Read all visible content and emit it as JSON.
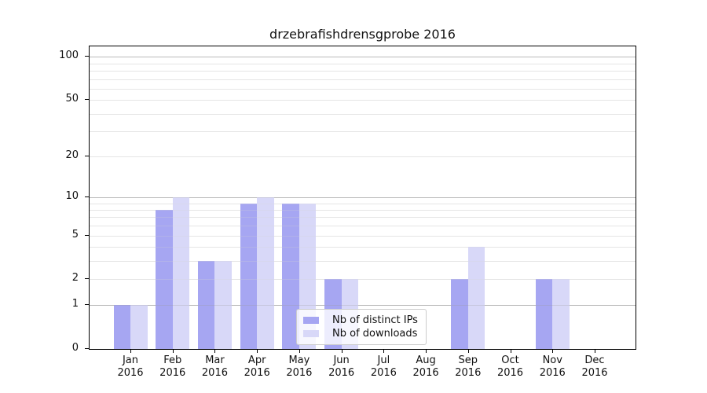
{
  "chart_data": {
    "type": "bar",
    "title": "drzebrafishdrensgprobe 2016",
    "categories": [
      "Jan",
      "Feb",
      "Mar",
      "Apr",
      "May",
      "Jun",
      "Jul",
      "Aug",
      "Sep",
      "Oct",
      "Nov",
      "Dec"
    ],
    "category_year": "2016",
    "series": [
      {
        "name": "Nb of distinct IPs",
        "color": "#a6a6f2",
        "values": [
          1,
          8,
          3,
          9,
          9,
          2,
          0,
          0,
          2,
          0,
          2,
          0
        ]
      },
      {
        "name": "Nb of downloads",
        "color": "#d8d8f8",
        "values": [
          1,
          10,
          3,
          10,
          9,
          2,
          0,
          0,
          4,
          0,
          2,
          0
        ]
      }
    ],
    "yscale": "log1p",
    "ylim": [
      0,
      118
    ],
    "yticks": [
      0,
      1,
      2,
      5,
      10,
      20,
      50,
      100
    ],
    "grid": {
      "major": [
        1,
        10,
        100
      ],
      "minor": [
        2,
        3,
        4,
        5,
        6,
        7,
        8,
        9,
        20,
        30,
        40,
        50,
        60,
        70,
        80,
        90
      ]
    },
    "legend_position": "lower center",
    "xlabel": "",
    "ylabel": ""
  }
}
